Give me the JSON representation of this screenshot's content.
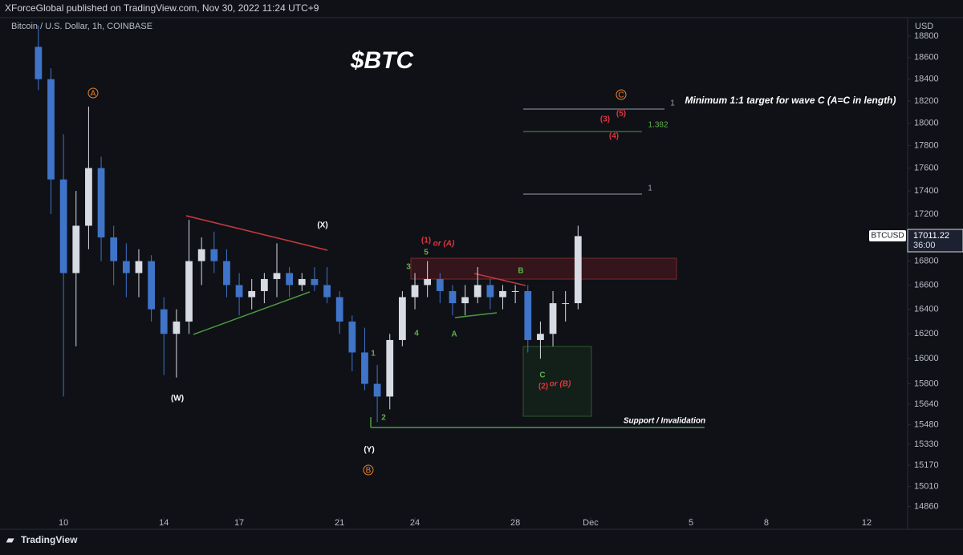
{
  "header": {
    "publisher": "XForceGlobal published on TradingView.com, Nov 30, 2022 11:24 UTC+9"
  },
  "footer": {
    "brand": "TradingView"
  },
  "chart_data": {
    "type": "candlestick",
    "title": "$BTC",
    "subtitle": "Bitcoin / U.S. Dollar, 1h, COINBASE",
    "y_axis_label": "USD",
    "symbol": "BTCUSD",
    "countdown": "36:00",
    "log_scale": true,
    "grid": false,
    "up_color": "#d7dbe3",
    "down_color": "#3f74c9",
    "x": [
      9,
      9.5,
      10,
      10.5,
      11,
      11.5,
      12,
      12.5,
      13,
      13.5,
      14,
      14.5,
      15,
      15.5,
      16,
      16.5,
      17,
      17.5,
      18,
      18.5,
      19,
      19.5,
      20,
      20.5,
      21,
      21.5,
      22,
      22.5,
      23,
      23.5,
      24,
      24.5,
      25,
      25.5,
      26,
      26.5,
      27,
      27.5,
      28,
      28.5,
      29,
      29.5,
      30,
      30.5
    ],
    "open": [
      18700,
      18400,
      17500,
      16700,
      17100,
      17600,
      17000,
      16800,
      16700,
      16800,
      16400,
      16200,
      16300,
      16800,
      16900,
      16800,
      16600,
      16500,
      16550,
      16650,
      16700,
      16600,
      16650,
      16600,
      16500,
      16300,
      16050,
      15800,
      15700,
      16150,
      16500,
      16600,
      16650,
      16550,
      16450,
      16500,
      16600,
      16500,
      16550,
      16550,
      16150,
      16200,
      16450,
      16450
    ],
    "high": [
      18900,
      18500,
      17900,
      17400,
      18150,
      17700,
      17100,
      16950,
      16900,
      16850,
      16500,
      16400,
      17150,
      17000,
      17050,
      16900,
      16700,
      16650,
      16700,
      16950,
      16750,
      16700,
      16750,
      16750,
      16550,
      16350,
      16250,
      15950,
      16200,
      16550,
      16700,
      16800,
      16700,
      16600,
      16600,
      16750,
      16650,
      16600,
      16600,
      16600,
      16300,
      16550,
      16550,
      17100
    ],
    "low": [
      18300,
      17200,
      15700,
      16100,
      16900,
      16800,
      16600,
      16500,
      16500,
      16300,
      15870,
      15850,
      16200,
      16600,
      16700,
      16500,
      16350,
      16400,
      16450,
      16500,
      16500,
      16550,
      16550,
      16450,
      16200,
      15900,
      15750,
      15500,
      15600,
      16100,
      16400,
      16500,
      16450,
      16350,
      16350,
      16450,
      16400,
      16400,
      16450,
      16050,
      16000,
      16100,
      16300,
      16400
    ],
    "close": [
      18400,
      17500,
      16700,
      17100,
      17600,
      17000,
      16800,
      16700,
      16800,
      16400,
      16200,
      16300,
      16800,
      16900,
      16800,
      16600,
      16500,
      16550,
      16650,
      16700,
      16600,
      16650,
      16600,
      16500,
      16300,
      16050,
      15800,
      15700,
      16150,
      16500,
      16600,
      16650,
      16550,
      16450,
      16500,
      16600,
      16500,
      16550,
      16550,
      16150,
      16200,
      16450,
      16450,
      17011.22
    ],
    "xlim": [
      7.47,
      43.63
    ],
    "xticks": [
      10,
      14,
      17,
      21,
      24,
      28,
      {
        "value": 31,
        "label": "Dec"
      },
      {
        "value": 35,
        "label": "5"
      },
      {
        "value": 38,
        "label": "8"
      },
      {
        "value": 42,
        "label": "12"
      }
    ],
    "ylim": [
      14780,
      18975
    ],
    "yticks": [
      14860,
      15010,
      15170,
      15330,
      15480,
      15640,
      15800,
      16000,
      16200,
      16400,
      16600,
      16800,
      17000,
      17200,
      17400,
      17600,
      17800,
      18000,
      18200,
      18400,
      18600,
      18800
    ],
    "annotations": [
      "A",
      "(W)",
      "(X)",
      "(Y)",
      "B",
      "C",
      "1",
      "2",
      "3",
      "4",
      "5",
      "(1)",
      "or (A)",
      "A",
      "B",
      "C",
      "(2)",
      "or (B)",
      "(3)",
      "(5)",
      "(4)",
      "1",
      "1.382",
      "1",
      "Minimum 1:1 target for wave C (A=C in length)",
      "Support / Invalidation"
    ]
  }
}
